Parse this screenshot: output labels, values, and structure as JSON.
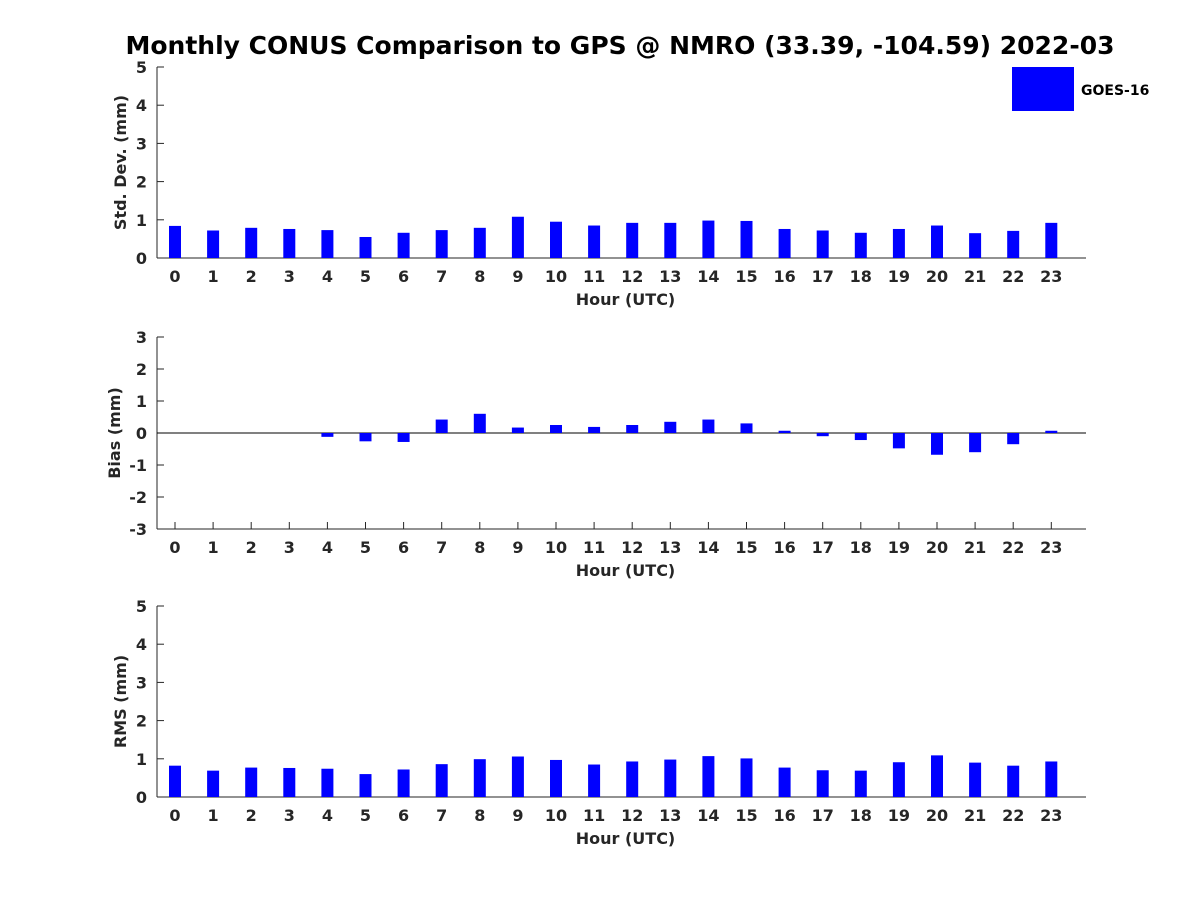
{
  "title": "Monthly CONUS Comparison to GPS @ NMRO (33.39, -104.59) 2022-03",
  "legend": {
    "label": "GOES-16",
    "color": "#0000ff",
    "position": "top-right"
  },
  "bar_color": "#0000ff",
  "chart_data": [
    {
      "type": "bar",
      "id": "std",
      "series_name": "GOES-16",
      "categories": [
        "0",
        "1",
        "2",
        "3",
        "4",
        "5",
        "6",
        "7",
        "8",
        "9",
        "10",
        "11",
        "12",
        "13",
        "14",
        "15",
        "16",
        "17",
        "18",
        "19",
        "20",
        "21",
        "22",
        "23"
      ],
      "values": [
        0.84,
        0.72,
        0.79,
        0.76,
        0.73,
        0.55,
        0.66,
        0.73,
        0.79,
        1.08,
        0.95,
        0.85,
        0.92,
        0.92,
        0.98,
        0.97,
        0.76,
        0.72,
        0.66,
        0.76,
        0.85,
        0.65,
        0.71,
        0.92
      ],
      "xlabel": "Hour (UTC)",
      "ylabel": "Std. Dev. (mm)",
      "ylim": [
        0,
        5
      ],
      "yticks": [
        "0",
        "1",
        "2",
        "3",
        "4",
        "5"
      ],
      "grid": false
    },
    {
      "type": "bar",
      "id": "bias",
      "series_name": "GOES-16",
      "categories": [
        "0",
        "1",
        "2",
        "3",
        "4",
        "5",
        "6",
        "7",
        "8",
        "9",
        "10",
        "11",
        "12",
        "13",
        "14",
        "15",
        "16",
        "17",
        "18",
        "19",
        "20",
        "21",
        "22",
        "23"
      ],
      "values": [
        0,
        0,
        0,
        0,
        -0.12,
        -0.26,
        -0.28,
        0.42,
        0.6,
        0.17,
        0.25,
        0.19,
        0.25,
        0.35,
        0.42,
        0.3,
        0.07,
        -0.1,
        -0.22,
        -0.48,
        -0.68,
        -0.6,
        -0.35,
        0.07
      ],
      "xlabel": "Hour (UTC)",
      "ylabel": "Bias (mm)",
      "ylim": [
        -3,
        3
      ],
      "yticks": [
        "-3",
        "-2",
        "-1",
        "0",
        "1",
        "2",
        "3"
      ],
      "zero_line": true,
      "grid": false
    },
    {
      "type": "bar",
      "id": "rms",
      "series_name": "GOES-16",
      "categories": [
        "0",
        "1",
        "2",
        "3",
        "4",
        "5",
        "6",
        "7",
        "8",
        "9",
        "10",
        "11",
        "12",
        "13",
        "14",
        "15",
        "16",
        "17",
        "18",
        "19",
        "20",
        "21",
        "22",
        "23"
      ],
      "values": [
        0.82,
        0.69,
        0.77,
        0.76,
        0.74,
        0.6,
        0.72,
        0.86,
        0.99,
        1.06,
        0.97,
        0.85,
        0.93,
        0.98,
        1.07,
        1.01,
        0.77,
        0.7,
        0.69,
        0.91,
        1.09,
        0.9,
        0.82,
        0.93
      ],
      "xlabel": "Hour (UTC)",
      "ylabel": "RMS (mm)",
      "ylim": [
        0,
        5
      ],
      "yticks": [
        "0",
        "1",
        "2",
        "3",
        "4",
        "5"
      ],
      "grid": false
    }
  ]
}
